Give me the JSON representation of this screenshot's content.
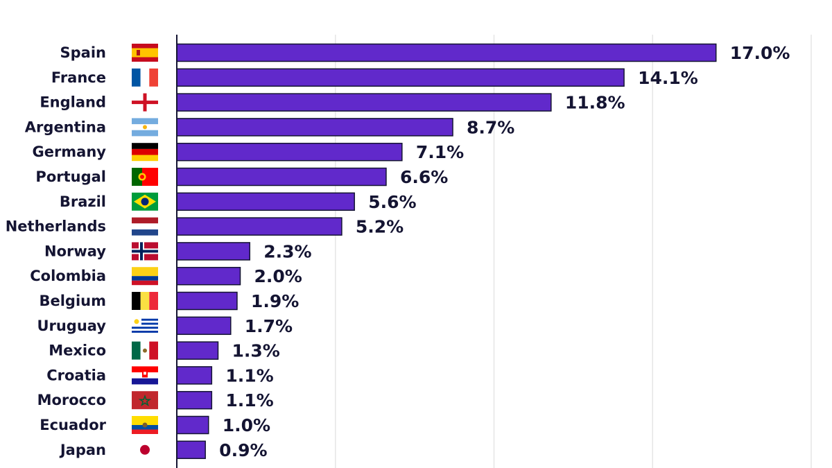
{
  "chart_data": {
    "type": "bar",
    "orientation": "horizontal",
    "categories": [
      "Spain",
      "France",
      "England",
      "Argentina",
      "Germany",
      "Portugal",
      "Brazil",
      "Netherlands",
      "Norway",
      "Colombia",
      "Belgium",
      "Uruguay",
      "Mexico",
      "Croatia",
      "Morocco",
      "Ecuador",
      "Japan"
    ],
    "values": [
      17.0,
      14.1,
      11.8,
      8.7,
      7.1,
      6.6,
      5.6,
      5.2,
      2.3,
      2.0,
      1.9,
      1.7,
      1.3,
      1.1,
      1.1,
      1.0,
      0.9
    ],
    "value_labels": [
      "17.0%",
      "14.1%",
      "11.8%",
      "8.7%",
      "7.1%",
      "6.6%",
      "5.6%",
      "5.2%",
      "2.3%",
      "2.0%",
      "1.9%",
      "1.7%",
      "1.3%",
      "1.1%",
      "1.1%",
      "1.0%",
      "0.9%"
    ],
    "flag_icons": [
      "spain-flag-icon",
      "france-flag-icon",
      "england-flag-icon",
      "argentina-flag-icon",
      "germany-flag-icon",
      "portugal-flag-icon",
      "brazil-flag-icon",
      "netherlands-flag-icon",
      "norway-flag-icon",
      "colombia-flag-icon",
      "belgium-flag-icon",
      "uruguay-flag-icon",
      "mexico-flag-icon",
      "croatia-flag-icon",
      "morocco-flag-icon",
      "ecuador-flag-icon",
      "japan-flag-icon"
    ],
    "xlim": [
      0,
      20
    ],
    "grid": true,
    "bar_color": "#6129cb",
    "bar_outline_color": "#141432",
    "text_color": "#141432",
    "gridline_color": "#e6e6e6"
  }
}
